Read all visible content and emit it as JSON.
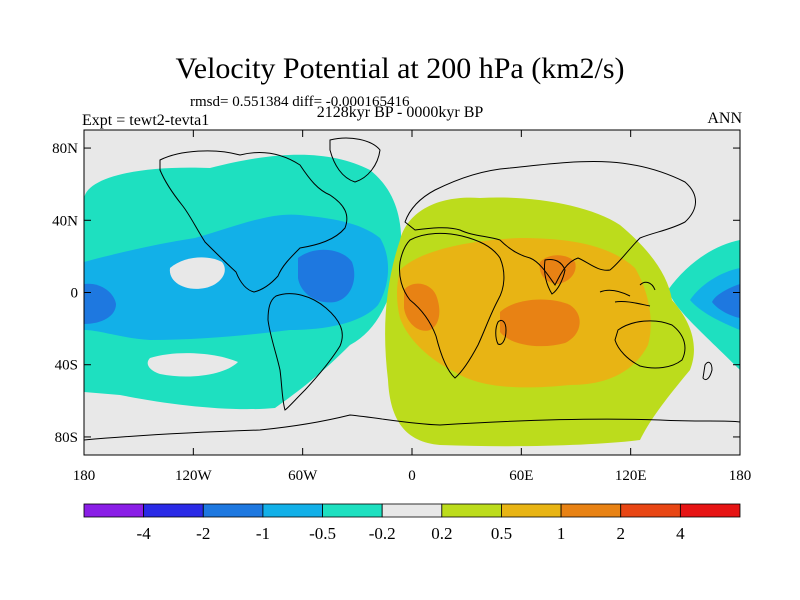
{
  "header": {
    "title": "Velocity Potential at 200 hPa (km2/s)",
    "stats": "rmsd= 0.551384 diff= -0.000165416",
    "experiment": "Expt = tewt2-tevta1",
    "period": "2128kyr BP - 0000kyr BP",
    "season": "ANN"
  },
  "axes": {
    "lat_ticks": [
      "80N",
      "40N",
      "0",
      "40S",
      "80S"
    ],
    "lat_values": [
      80,
      40,
      0,
      -40,
      -80
    ],
    "lon_ticks": [
      "180",
      "120W",
      "60W",
      "0",
      "60E",
      "120E",
      "180"
    ],
    "lon_values": [
      -180,
      -120,
      -60,
      0,
      60,
      120,
      180
    ],
    "lat_range": [
      -90,
      90
    ],
    "lon_range": [
      -180,
      180
    ]
  },
  "colorbar": {
    "labels": [
      "-4",
      "-2",
      "-1",
      "-0.5",
      "-0.2",
      "0.2",
      "0.5",
      "1",
      "2",
      "4"
    ],
    "colors": [
      "#8a1ee6",
      "#2a2ae6",
      "#1e78e0",
      "#12b0e8",
      "#1ee0c0",
      "#e8e8e8",
      "#bcdc1c",
      "#e8b414",
      "#e88214",
      "#e84614",
      "#e61414"
    ]
  },
  "fill_colors": {
    "negative_strong": "#1e78e0",
    "negative_medium": "#12b0e8",
    "negative_weak": "#1ee0c0",
    "neutral": "#e8e8e8",
    "positive_weak": "#bcdc1c",
    "positive_medium": "#e8b414",
    "positive_strong": "#e88214"
  }
}
